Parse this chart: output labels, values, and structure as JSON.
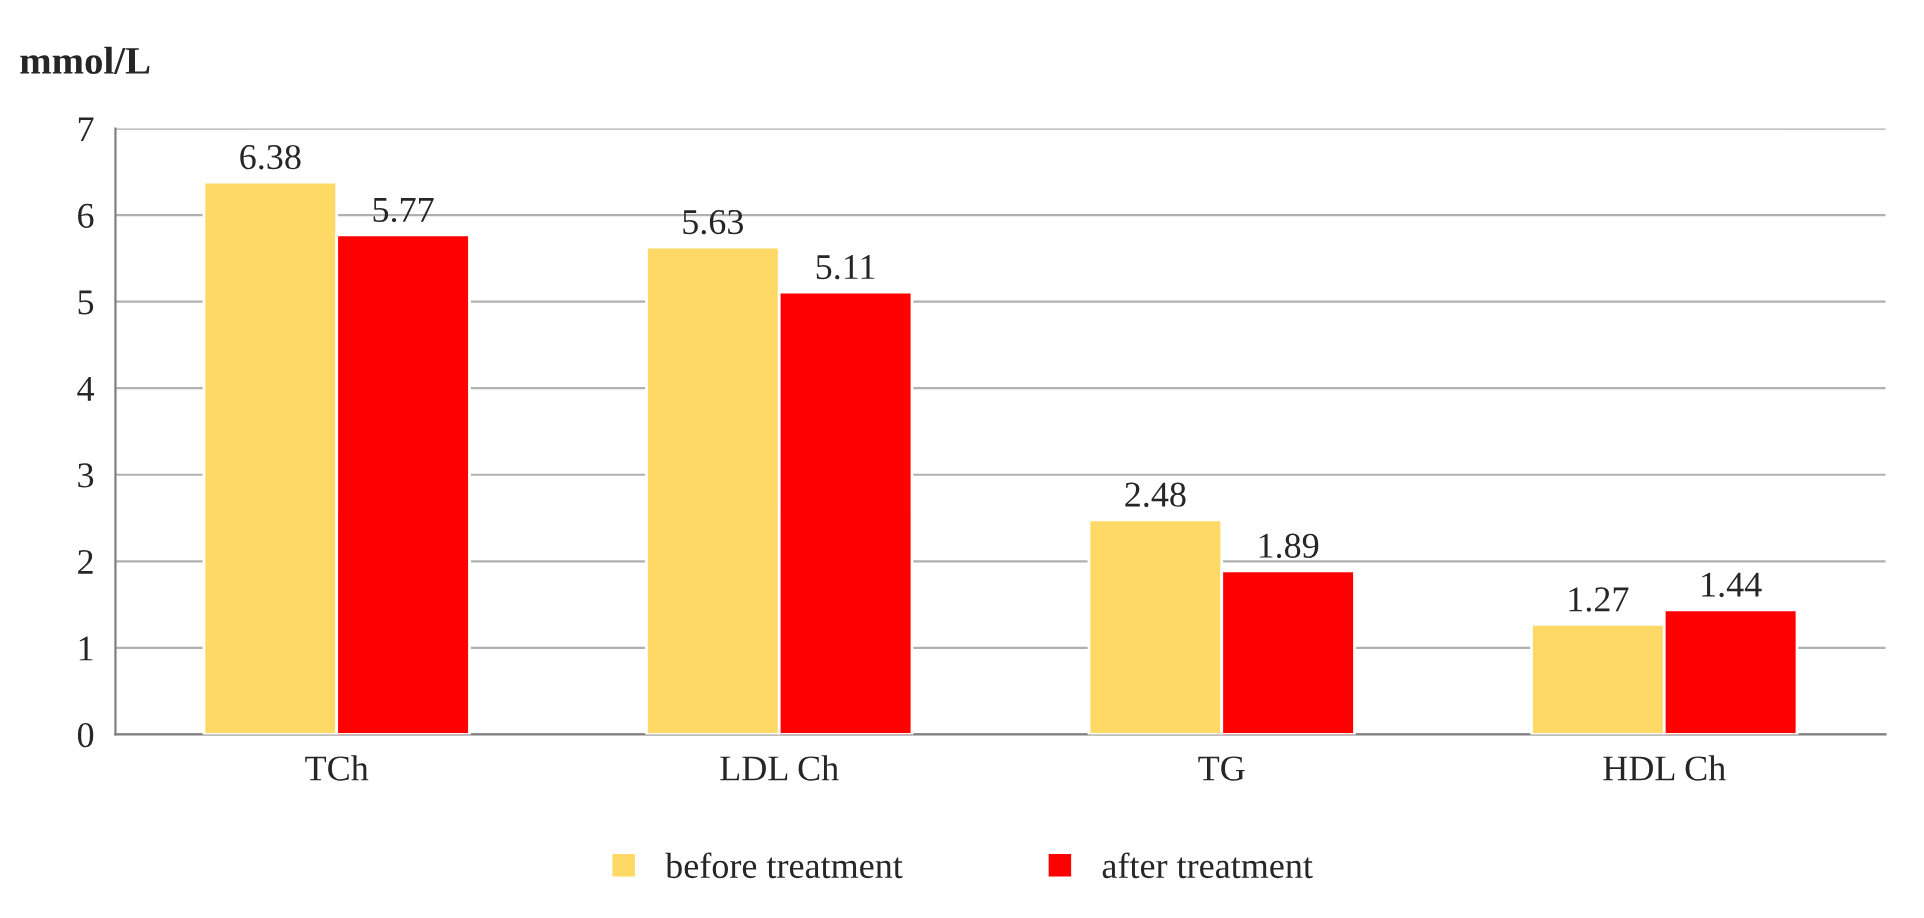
{
  "chart_data": {
    "type": "bar",
    "ylabel": "mmol/L",
    "categories": [
      "TCh",
      "LDL Ch",
      "TG",
      "HDL Ch"
    ],
    "series": [
      {
        "name": "before treatment",
        "color": "#ffd966",
        "values": [
          6.38,
          5.63,
          2.48,
          1.27
        ]
      },
      {
        "name": "after treatment",
        "color": "#ff0000",
        "values": [
          5.77,
          5.11,
          1.89,
          1.44
        ]
      }
    ],
    "ylim": [
      0,
      7
    ],
    "yticks": [
      0,
      1,
      2,
      3,
      4,
      5,
      6,
      7
    ],
    "grid": "y",
    "legend": "bottom",
    "data_labels": true
  }
}
